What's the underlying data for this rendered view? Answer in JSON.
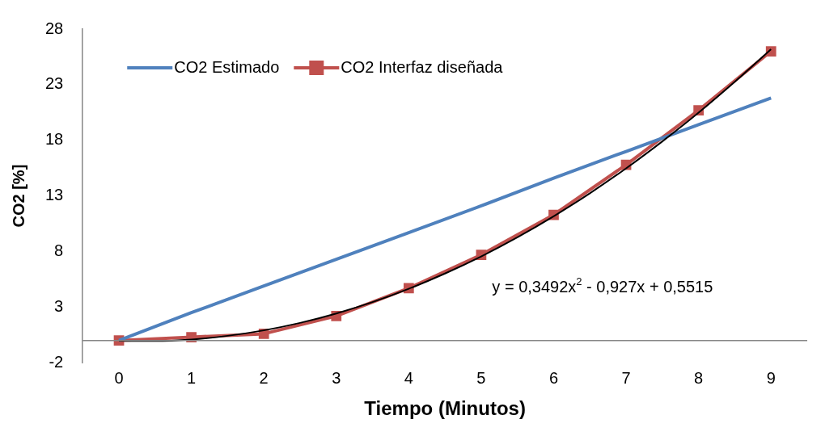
{
  "chart_data": {
    "type": "line",
    "xlabel": "Tiempo (Minutos)",
    "ylabel": "CO2 [%]",
    "x": [
      0,
      1,
      2,
      3,
      4,
      5,
      6,
      7,
      8,
      9
    ],
    "xlim": [
      -0.5,
      9.5
    ],
    "xticks": [
      0,
      1,
      2,
      3,
      4,
      5,
      6,
      7,
      8,
      9
    ],
    "ylim": [
      -2,
      28
    ],
    "yticks": [
      -2,
      3,
      8,
      13,
      18,
      23,
      28
    ],
    "grid": false,
    "legend": "top left",
    "series": [
      {
        "name": "CO2 Estimado",
        "color": "#4f81bd",
        "marker": "none",
        "values": [
          0,
          2.5,
          4.9,
          7.3,
          9.7,
          12.1,
          14.6,
          17.0,
          19.4,
          21.8
        ]
      },
      {
        "name": "CO2 Interfaz diseñada",
        "color": "#c0504d",
        "marker": "square",
        "values": [
          0,
          0.3,
          0.6,
          2.2,
          4.7,
          7.7,
          11.3,
          15.8,
          20.7,
          26.0
        ]
      },
      {
        "color": "#000000",
        "marker": "none",
        "x": [
          0,
          0.5,
          1,
          1.5,
          2,
          2.5,
          3,
          3.5,
          4,
          4.5,
          5,
          5.5,
          6,
          6.5,
          7,
          7.5,
          8,
          8.5,
          9
        ],
        "values": [
          -0.03,
          -0.05,
          0.09,
          0.42,
          0.91,
          1.58,
          2.43,
          3.45,
          4.65,
          6.02,
          7.56,
          9.28,
          11.17,
          13.24,
          15.48,
          17.9,
          20.48,
          23.26,
          26.19
        ]
      }
    ],
    "annotations": [
      "y = 0,3492x$^{2}$ - 0,927x + 0,5515"
    ]
  }
}
